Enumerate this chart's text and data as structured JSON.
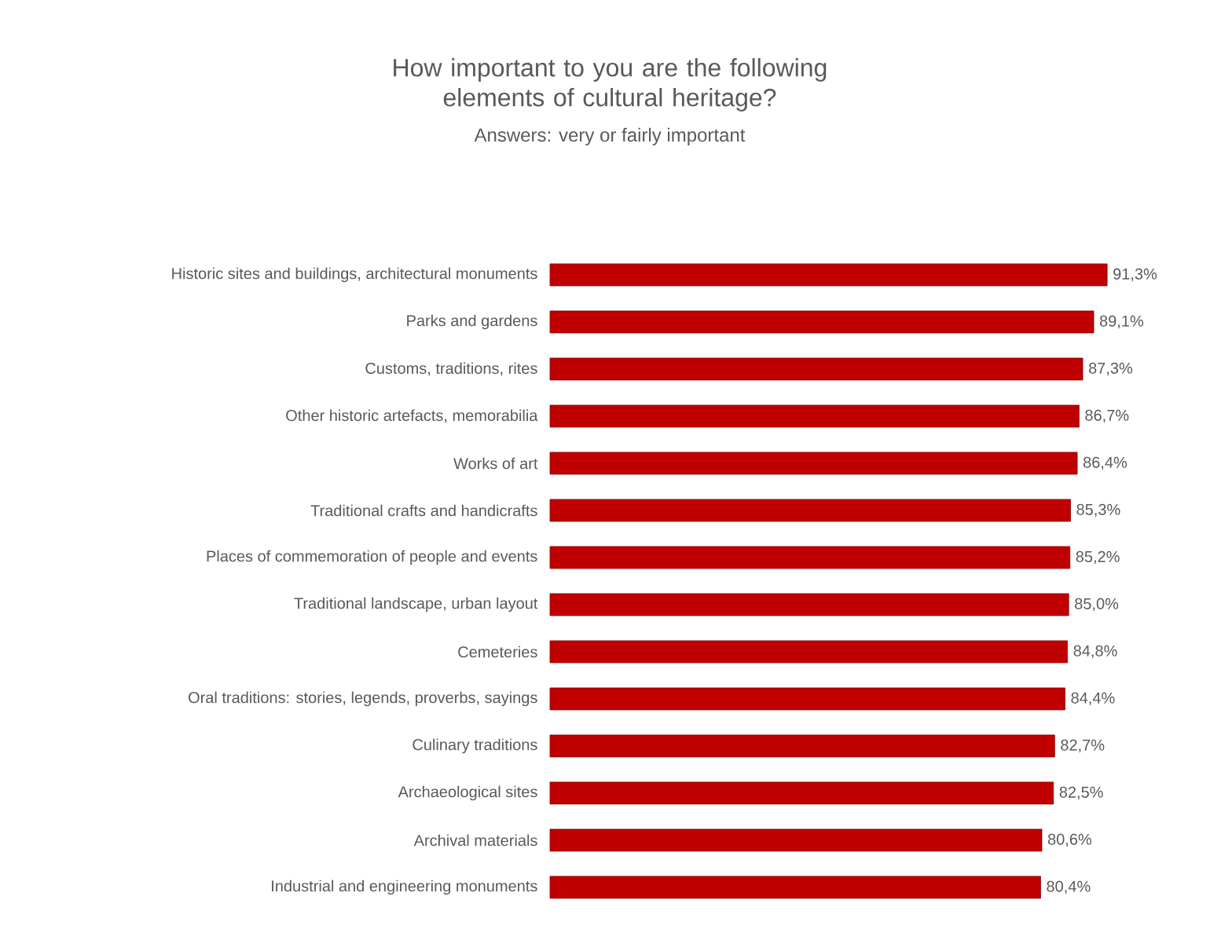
{
  "chart_data": {
    "type": "bar",
    "orientation": "horizontal",
    "title": "How important to you are the following elements of cultural heritage?",
    "subtitle": "Answers: very or fairly important",
    "categories": [
      "Historic sites and buildings, architectural monuments",
      "Parks and gardens",
      "Customs, traditions, rites",
      "Other historic artefacts, memorabilia",
      "Works of art",
      "Traditional crafts and handicrafts",
      "Places of commemoration of people and events",
      "Traditional landscape, urban layout",
      "Cemeteries",
      "Oral traditions: stories, legends, proverbs, sayings",
      "Culinary traditions",
      "Archaeological sites",
      "Archival materials",
      "Industrial and engineering monuments"
    ],
    "values": [
      91.3,
      89.1,
      87.3,
      86.7,
      86.4,
      85.3,
      85.2,
      85.0,
      84.8,
      84.4,
      82.7,
      82.5,
      80.6,
      80.4
    ],
    "value_labels": [
      "91,3%",
      "89,1%",
      "87,3%",
      "86,7%",
      "86,4%",
      "85,3%",
      "85,2%",
      "85,0%",
      "84,8%",
      "84,4%",
      "82,7%",
      "82,5%",
      "80,6%",
      "80,4%"
    ],
    "color": "#c00000",
    "tick_labels": "y"
  }
}
